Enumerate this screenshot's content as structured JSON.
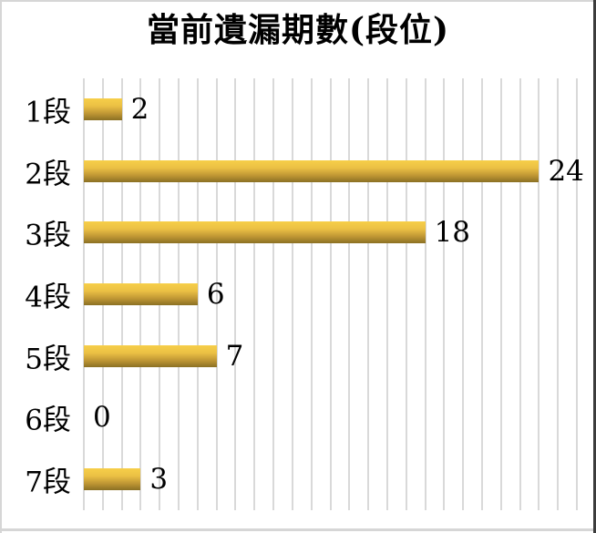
{
  "chart_data": {
    "type": "bar",
    "orientation": "horizontal",
    "title": "當前遺漏期數(段位)",
    "categories": [
      "1段",
      "2段",
      "3段",
      "4段",
      "5段",
      "6段",
      "7段"
    ],
    "values": [
      2,
      24,
      18,
      6,
      7,
      0,
      3
    ],
    "xlabel": "",
    "ylabel": "",
    "xlim": [
      0,
      26
    ],
    "gridline_step": 1,
    "grid": "vertical-gridlines",
    "legend": "none",
    "data_labels": "shown-at-bar-end",
    "colors": {
      "bar_top": "#F7CF49",
      "bar_upper": "#EBC044",
      "bar_lower": "#BE9634",
      "bar_bottom": "#8A7023",
      "gridline": "#D9D9D9",
      "text": "#000000",
      "background": "#FFFFFF",
      "frame_light_edge": "#D6D6D6",
      "frame_dark_edge": "#3C3C3C"
    }
  }
}
